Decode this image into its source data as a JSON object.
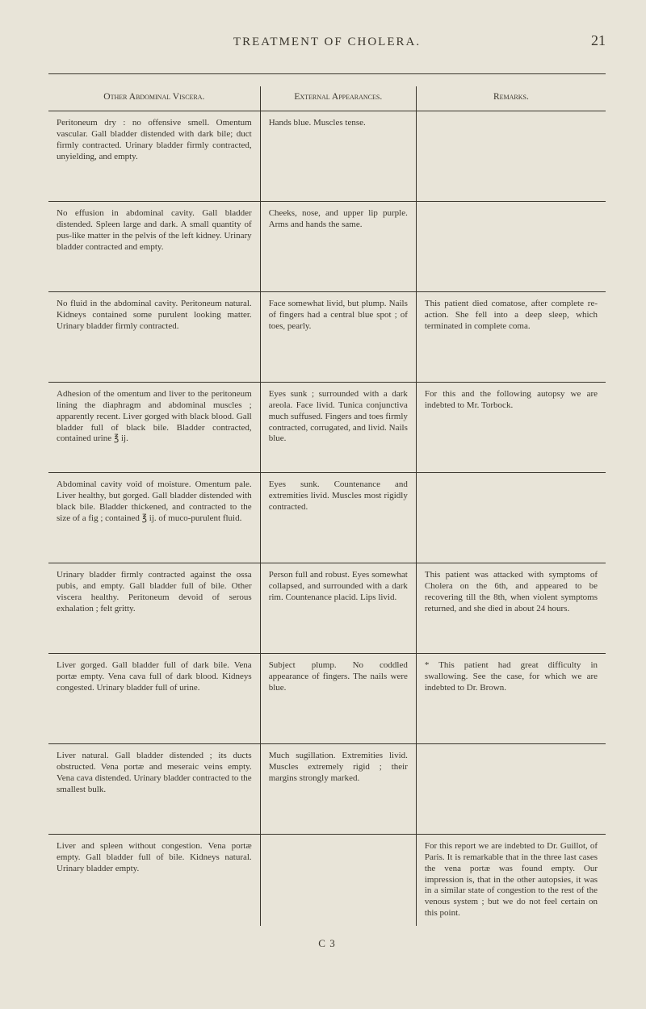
{
  "header": {
    "title": "TREATMENT OF CHOLERA.",
    "page_number": "21"
  },
  "table": {
    "columns": [
      "Other Abdominal Viscera.",
      "External Appearances.",
      "Remarks."
    ],
    "rows": [
      {
        "c1": "Peritoneum dry : no offensive smell. Omentum vascular. Gall bladder distended with dark bile; duct firmly contracted. Urinary bladder firmly contracted, unyielding, and empty.",
        "c2": "Hands blue. Muscles tense.",
        "c3": ""
      },
      {
        "c1": "No effusion in abdominal cavity. Gall bladder distended. Spleen large and dark. A small quantity of pus-like matter in the pelvis of the left kidney. Urinary bladder contracted and empty.",
        "c2": "Cheeks, nose, and upper lip purple. Arms and hands the same.",
        "c3": ""
      },
      {
        "c1": "No fluid in the abdominal cavity. Peritoneum natural. Kidneys contained some purulent looking matter. Urinary bladder firmly contracted.",
        "c2": "Face somewhat livid, but plump. Nails of fingers had a central blue spot ; of toes, pearly.",
        "c3": "This patient died comatose, after complete re-action. She fell into a deep sleep, which terminated in complete coma."
      },
      {
        "c1": "Adhesion of the omentum and liver to the peritoneum lining the diaphragm and abdominal muscles ; apparently recent. Liver gorged with black blood. Gall bladder full of black bile. Bladder contracted, contained urine ℥ ij.",
        "c2": "Eyes sunk ; surrounded with a dark areola. Face livid. Tunica conjunctiva much suffused. Fingers and toes firmly contracted, corrugated, and livid. Nails blue.",
        "c3": "For this and the following autopsy we are indebted to Mr. Torbock."
      },
      {
        "c1": "Abdominal cavity void of moisture. Omentum pale. Liver healthy, but gorged. Gall bladder distended with black bile. Bladder thickened, and contracted to the size of a fig ; contained ℥ ij. of muco-purulent fluid.",
        "c2": "Eyes sunk. Countenance and extremities livid. Muscles most rigidly contracted.",
        "c3": ""
      },
      {
        "c1": "Urinary bladder firmly contracted against the ossa pubis, and empty. Gall bladder full of bile. Other viscera healthy. Peritoneum devoid of serous exhalation ; felt gritty.",
        "c2": "Person full and robust. Eyes somewhat collapsed, and surrounded with a dark rim. Countenance placid. Lips livid.",
        "c3": "This patient was attacked with symptoms of Cholera on the 6th, and appeared to be recovering till the 8th, when violent symptoms returned, and she died in about 24 hours."
      },
      {
        "c1": "Liver gorged. Gall bladder full of dark bile. Vena portæ empty. Vena cava full of dark blood. Kidneys congested. Urinary bladder full of urine.",
        "c2": "Subject plump. No coddled appearance of fingers. The nails were blue.",
        "c3": "* This patient had great difficulty in swallowing. See the case, for which we are indebted to Dr. Brown."
      },
      {
        "c1": "Liver natural. Gall bladder distended ; its ducts obstructed. Vena portæ and meseraic veins empty. Vena cava distended. Urinary bladder contracted to the smallest bulk.",
        "c2": "Much sugillation. Extremities livid. Muscles extremely rigid ; their margins strongly marked.",
        "c3": ""
      },
      {
        "c1": "Liver and spleen without congestion. Vena portæ empty. Gall bladder full of bile. Kidneys natural. Urinary bladder empty.",
        "c2": "",
        "c3": "For this report we are indebted to Dr. Guillot, of Paris. It is remarkable that in the three last cases the vena portæ was found empty. Our impression is, that in the other autopsies, it was in a similar state of congestion to the rest of the venous system ; but we do not feel certain on this point."
      }
    ]
  },
  "signature": "C 3"
}
